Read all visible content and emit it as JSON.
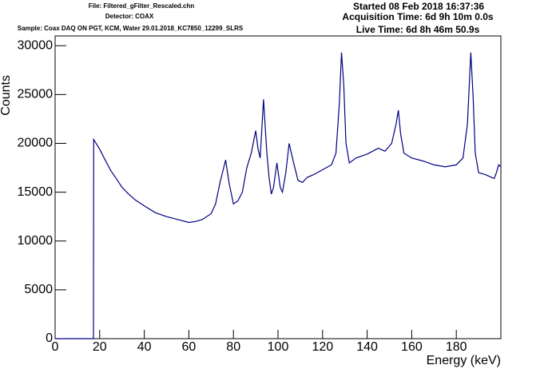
{
  "chart_data": {
    "type": "line",
    "header_left": [
      "File: Filtered_gFilter_Rescaled.chn",
      "Detector: COAX",
      "Sample: Coax DAQ ON PGT, KCM, Water 29.01.2018_KC7850_12299_SLRS"
    ],
    "header_right": [
      "Started 08 Feb 2018 16:37:36",
      "Acquisition Time: 6d 9h 10m 0.0s",
      "Live Time: 6d 8h 46m 50.9s"
    ],
    "xlabel": "Energy (keV)",
    "ylabel": "Counts",
    "series": [
      {
        "color": "#000080",
        "x": [
          0,
          17.2,
          17.3,
          20,
          22,
          25,
          28,
          30,
          33,
          36,
          40,
          45,
          50,
          55,
          60,
          63,
          66,
          70,
          72,
          74,
          76.5,
          78,
          80,
          82,
          84,
          86,
          88,
          90,
          91,
          92,
          93.5,
          95,
          96,
          97,
          98,
          99.5,
          101,
          102,
          103.5,
          105,
          107,
          109,
          111,
          113,
          116,
          120,
          124,
          126,
          127.5,
          128.5,
          129.5,
          130.5,
          132,
          135,
          140,
          145,
          148,
          151,
          153,
          154,
          155,
          156.5,
          160,
          165,
          170,
          175,
          180,
          183,
          185,
          186.5,
          187.5,
          188.5,
          190,
          193,
          196,
          197,
          198,
          199,
          200
        ],
        "values": [
          0,
          0,
          20400,
          19400,
          18500,
          17200,
          16200,
          15500,
          14800,
          14200,
          13600,
          12900,
          12500,
          12200,
          11900,
          12000,
          12200,
          12800,
          13800,
          16000,
          18300,
          16000,
          13800,
          14100,
          15000,
          17500,
          19000,
          21300,
          19500,
          18500,
          24500,
          19000,
          16500,
          14800,
          15500,
          18000,
          15500,
          15000,
          17000,
          20000,
          18000,
          16200,
          16000,
          16500,
          16800,
          17300,
          17800,
          19000,
          24000,
          29300,
          26000,
          20000,
          18000,
          18500,
          18900,
          19500,
          19200,
          20000,
          22000,
          23400,
          21000,
          19000,
          18500,
          18200,
          17800,
          17600,
          17800,
          18500,
          22000,
          29300,
          25000,
          19000,
          17000,
          16800,
          16500,
          16400,
          17000,
          17800,
          17600
        ]
      }
    ],
    "xlim": [
      0,
      200
    ],
    "xticks": [
      0,
      20,
      40,
      60,
      80,
      100,
      120,
      140,
      160,
      180
    ],
    "ylim": [
      0,
      31000
    ],
    "yticks": [
      0,
      5000,
      10000,
      15000,
      20000,
      25000,
      30000
    ]
  }
}
